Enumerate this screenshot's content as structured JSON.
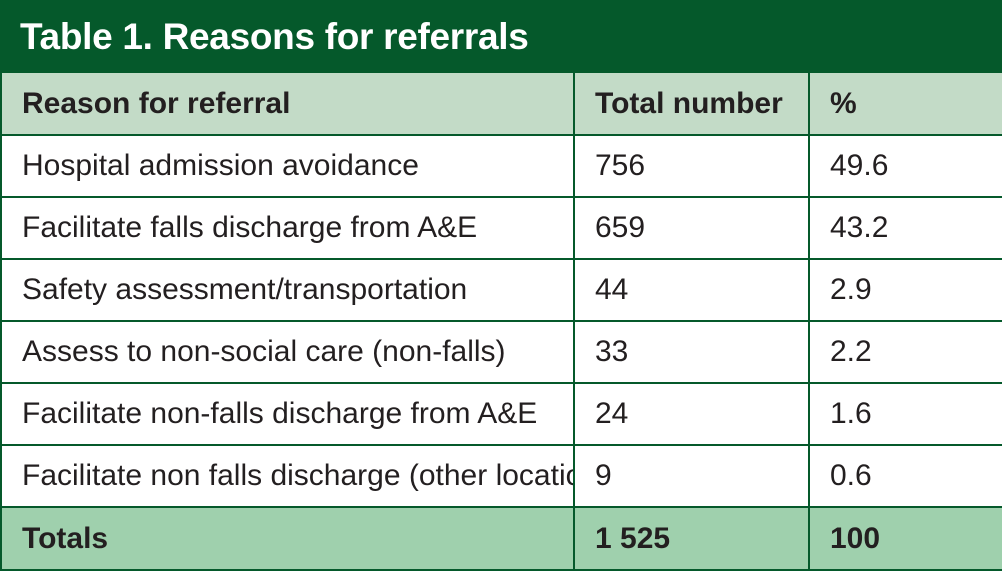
{
  "title": "Table 1. Reasons for referrals",
  "header": {
    "reason": "Reason for referral",
    "total": "Total number",
    "percent": "%"
  },
  "rows": [
    {
      "reason": "Hospital admission avoidance",
      "total": "756",
      "percent": "49.6"
    },
    {
      "reason": "Facilitate falls discharge from A&E",
      "total": "659",
      "percent": "43.2"
    },
    {
      "reason": "Safety assessment/transportation",
      "total": "44",
      "percent": "2.9"
    },
    {
      "reason": "Assess to non-social care (non-falls)",
      "total": "33",
      "percent": "2.2"
    },
    {
      "reason": "Facilitate non-falls discharge from A&E",
      "total": "24",
      "percent": "1.6"
    },
    {
      "reason": "Facilitate non falls discharge (other location)",
      "total": "9",
      "percent": "0.6"
    }
  ],
  "totals": {
    "label": "Totals",
    "total": "1 525",
    "percent": "100"
  },
  "colors": {
    "title_background": "#05592b",
    "header_background": "#c3dbc7",
    "totals_background": "#9fd0ad",
    "border": "#05592b"
  }
}
